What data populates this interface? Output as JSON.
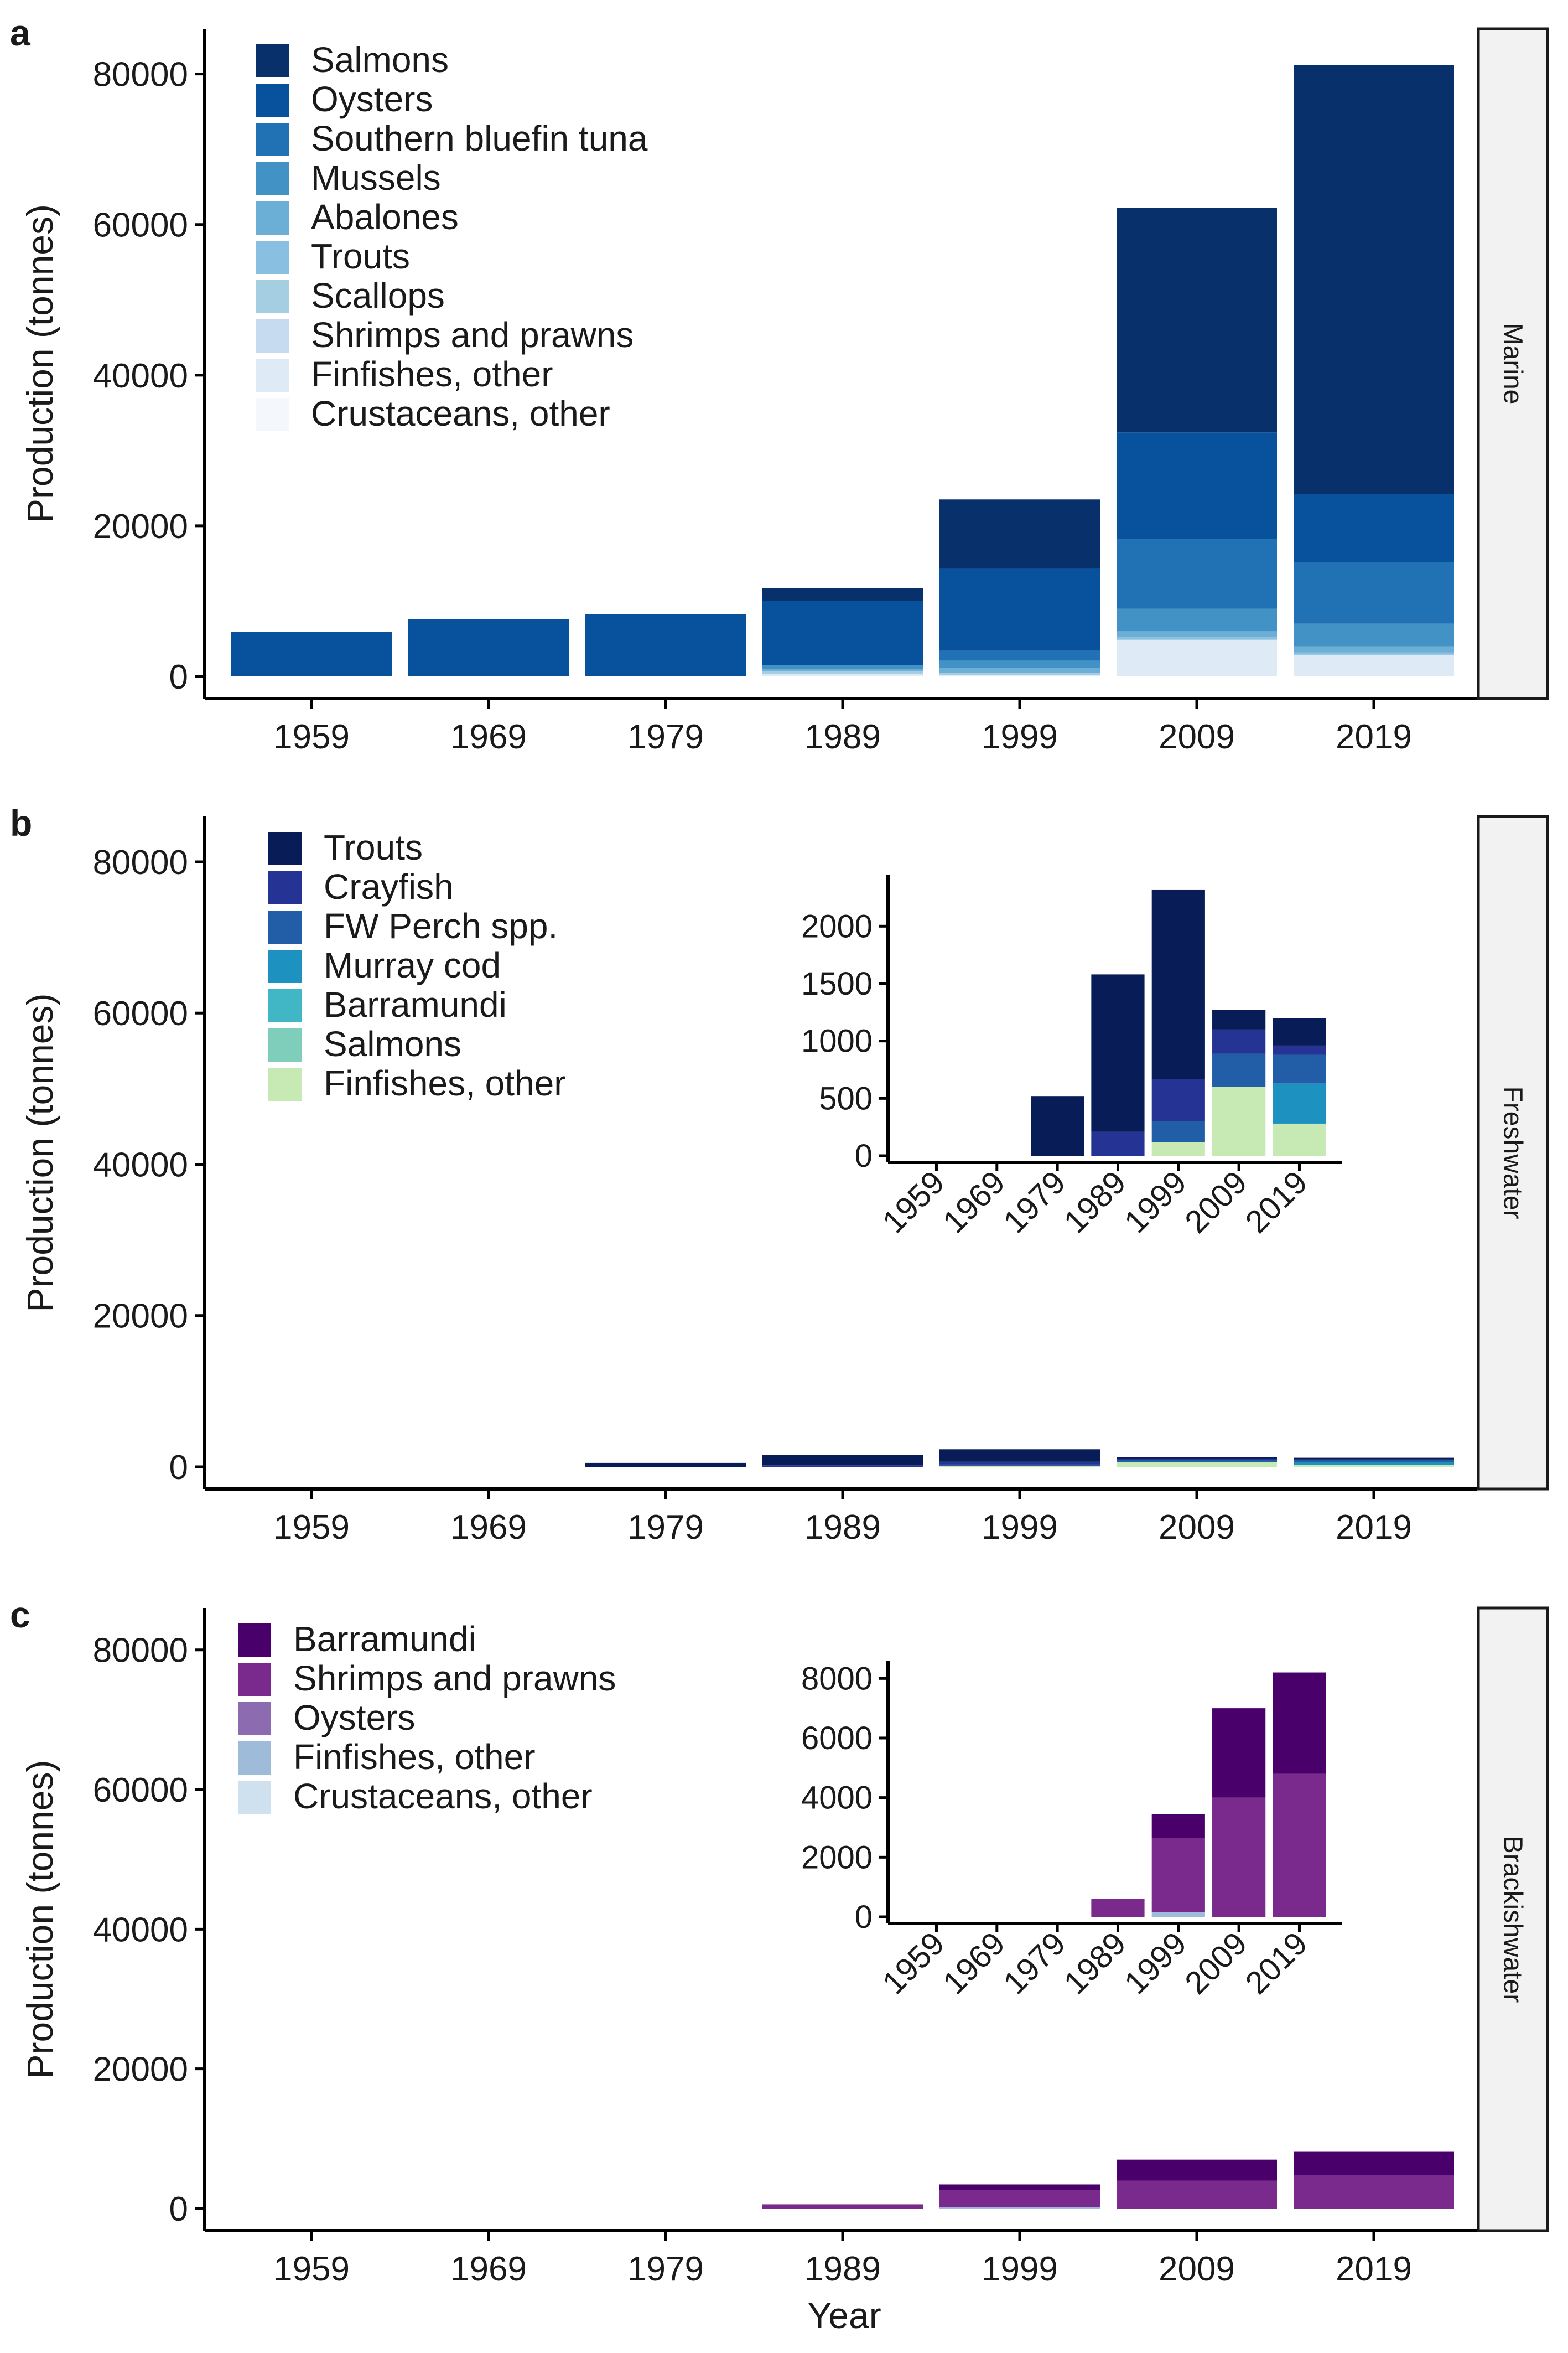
{
  "figure": {
    "x_axis_label": "Year",
    "y_axis_label": "Production (tonnes)"
  },
  "chart_data": [
    {
      "panel": "a",
      "type": "bar",
      "stacked": true,
      "facet_label": "Marine",
      "ylabel": "Production (tonnes)",
      "xlabel": "",
      "ylim": [
        0,
        86000
      ],
      "yticks": [
        0,
        20000,
        40000,
        60000,
        80000
      ],
      "categories": [
        "1959",
        "1969",
        "1979",
        "1989",
        "1999",
        "2009",
        "2019"
      ],
      "legend_position": "top-left",
      "series": [
        {
          "name": "Salmons",
          "color": "#08306b",
          "values": [
            0,
            0,
            0,
            1700,
            9200,
            29800,
            57000
          ]
        },
        {
          "name": "Oysters",
          "color": "#08519c",
          "values": [
            5900,
            7600,
            8300,
            8500,
            10900,
            14200,
            9000
          ]
        },
        {
          "name": "Southern bluefin tuna",
          "color": "#2171b5",
          "values": [
            0,
            0,
            0,
            0,
            1300,
            9200,
            8200
          ]
        },
        {
          "name": "Mussels",
          "color": "#4292c6",
          "values": [
            0,
            0,
            0,
            500,
            1000,
            3000,
            3000
          ]
        },
        {
          "name": "Abalones",
          "color": "#6baed6",
          "values": [
            0,
            0,
            0,
            300,
            600,
            800,
            800
          ]
        },
        {
          "name": "Trouts",
          "color": "#89bfe0",
          "values": [
            0,
            0,
            0,
            0,
            0,
            300,
            300
          ]
        },
        {
          "name": "Scallops",
          "color": "#a6cee3",
          "values": [
            0,
            0,
            0,
            400,
            300,
            100,
            100
          ]
        },
        {
          "name": "Shrimps and prawns",
          "color": "#c6dbef",
          "values": [
            0,
            0,
            0,
            0,
            0,
            0,
            0
          ]
        },
        {
          "name": "Finfishes, other",
          "color": "#deebf7",
          "values": [
            0,
            0,
            0,
            300,
            200,
            4800,
            2800
          ]
        },
        {
          "name": "Crustaceans, other",
          "color": "#f4f8fd",
          "values": [
            0,
            0,
            0,
            0,
            0,
            0,
            0
          ]
        }
      ]
    },
    {
      "panel": "b",
      "type": "bar",
      "stacked": true,
      "facet_label": "Freshwater",
      "ylabel": "Production (tonnes)",
      "xlabel": "",
      "ylim": [
        0,
        86000
      ],
      "yticks": [
        0,
        20000,
        40000,
        60000,
        80000
      ],
      "categories": [
        "1959",
        "1969",
        "1979",
        "1989",
        "1999",
        "2009",
        "2019"
      ],
      "legend_position": "top-left",
      "series": [
        {
          "name": "Trouts",
          "color": "#081d58",
          "values": [
            0,
            0,
            520,
            1370,
            1650,
            170,
            240
          ]
        },
        {
          "name": "Crayfish",
          "color": "#253494",
          "values": [
            0,
            0,
            0,
            210,
            370,
            210,
            80
          ]
        },
        {
          "name": "FW Perch spp.",
          "color": "#225ea8",
          "values": [
            0,
            0,
            0,
            0,
            180,
            290,
            250
          ]
        },
        {
          "name": "Murray cod",
          "color": "#1d91c0",
          "values": [
            0,
            0,
            0,
            0,
            0,
            0,
            350
          ]
        },
        {
          "name": "Barramundi",
          "color": "#41b6c4",
          "values": [
            0,
            0,
            0,
            0,
            0,
            0,
            0
          ]
        },
        {
          "name": "Salmons",
          "color": "#7fcdbb",
          "values": [
            0,
            0,
            0,
            0,
            0,
            0,
            0
          ]
        },
        {
          "name": "Finfishes, other",
          "color": "#c7e9b4",
          "values": [
            0,
            0,
            0,
            0,
            120,
            600,
            280
          ]
        }
      ],
      "inset": {
        "ylim": [
          0,
          2450
        ],
        "yticks": [
          0,
          500,
          1000,
          1500,
          2000
        ],
        "tick_rotation_deg": -45
      }
    },
    {
      "panel": "c",
      "type": "bar",
      "stacked": true,
      "facet_label": "Brackishwater",
      "ylabel": "Production (tonnes)",
      "xlabel": "Year",
      "ylim": [
        0,
        86000
      ],
      "yticks": [
        0,
        20000,
        40000,
        60000,
        80000
      ],
      "categories": [
        "1959",
        "1969",
        "1979",
        "1989",
        "1999",
        "2009",
        "2019"
      ],
      "legend_position": "top-left",
      "series": [
        {
          "name": "Barramundi",
          "color": "#49006a",
          "values": [
            0,
            0,
            0,
            0,
            800,
            3000,
            3400
          ]
        },
        {
          "name": "Shrimps and prawns",
          "color": "#7a2a8c",
          "values": [
            0,
            0,
            0,
            600,
            2500,
            4000,
            4800
          ]
        },
        {
          "name": "Oysters",
          "color": "#8c6bb1",
          "values": [
            0,
            0,
            0,
            0,
            0,
            0,
            0
          ]
        },
        {
          "name": "Finfishes, other",
          "color": "#9ebcda",
          "values": [
            0,
            0,
            0,
            0,
            150,
            0,
            0
          ]
        },
        {
          "name": "Crustaceans, other",
          "color": "#cfe0ee",
          "values": [
            0,
            0,
            0,
            0,
            0,
            0,
            0
          ]
        }
      ],
      "inset": {
        "ylim": [
          0,
          8600
        ],
        "yticks": [
          0,
          2000,
          4000,
          6000,
          8000
        ],
        "tick_rotation_deg": -45
      }
    }
  ]
}
